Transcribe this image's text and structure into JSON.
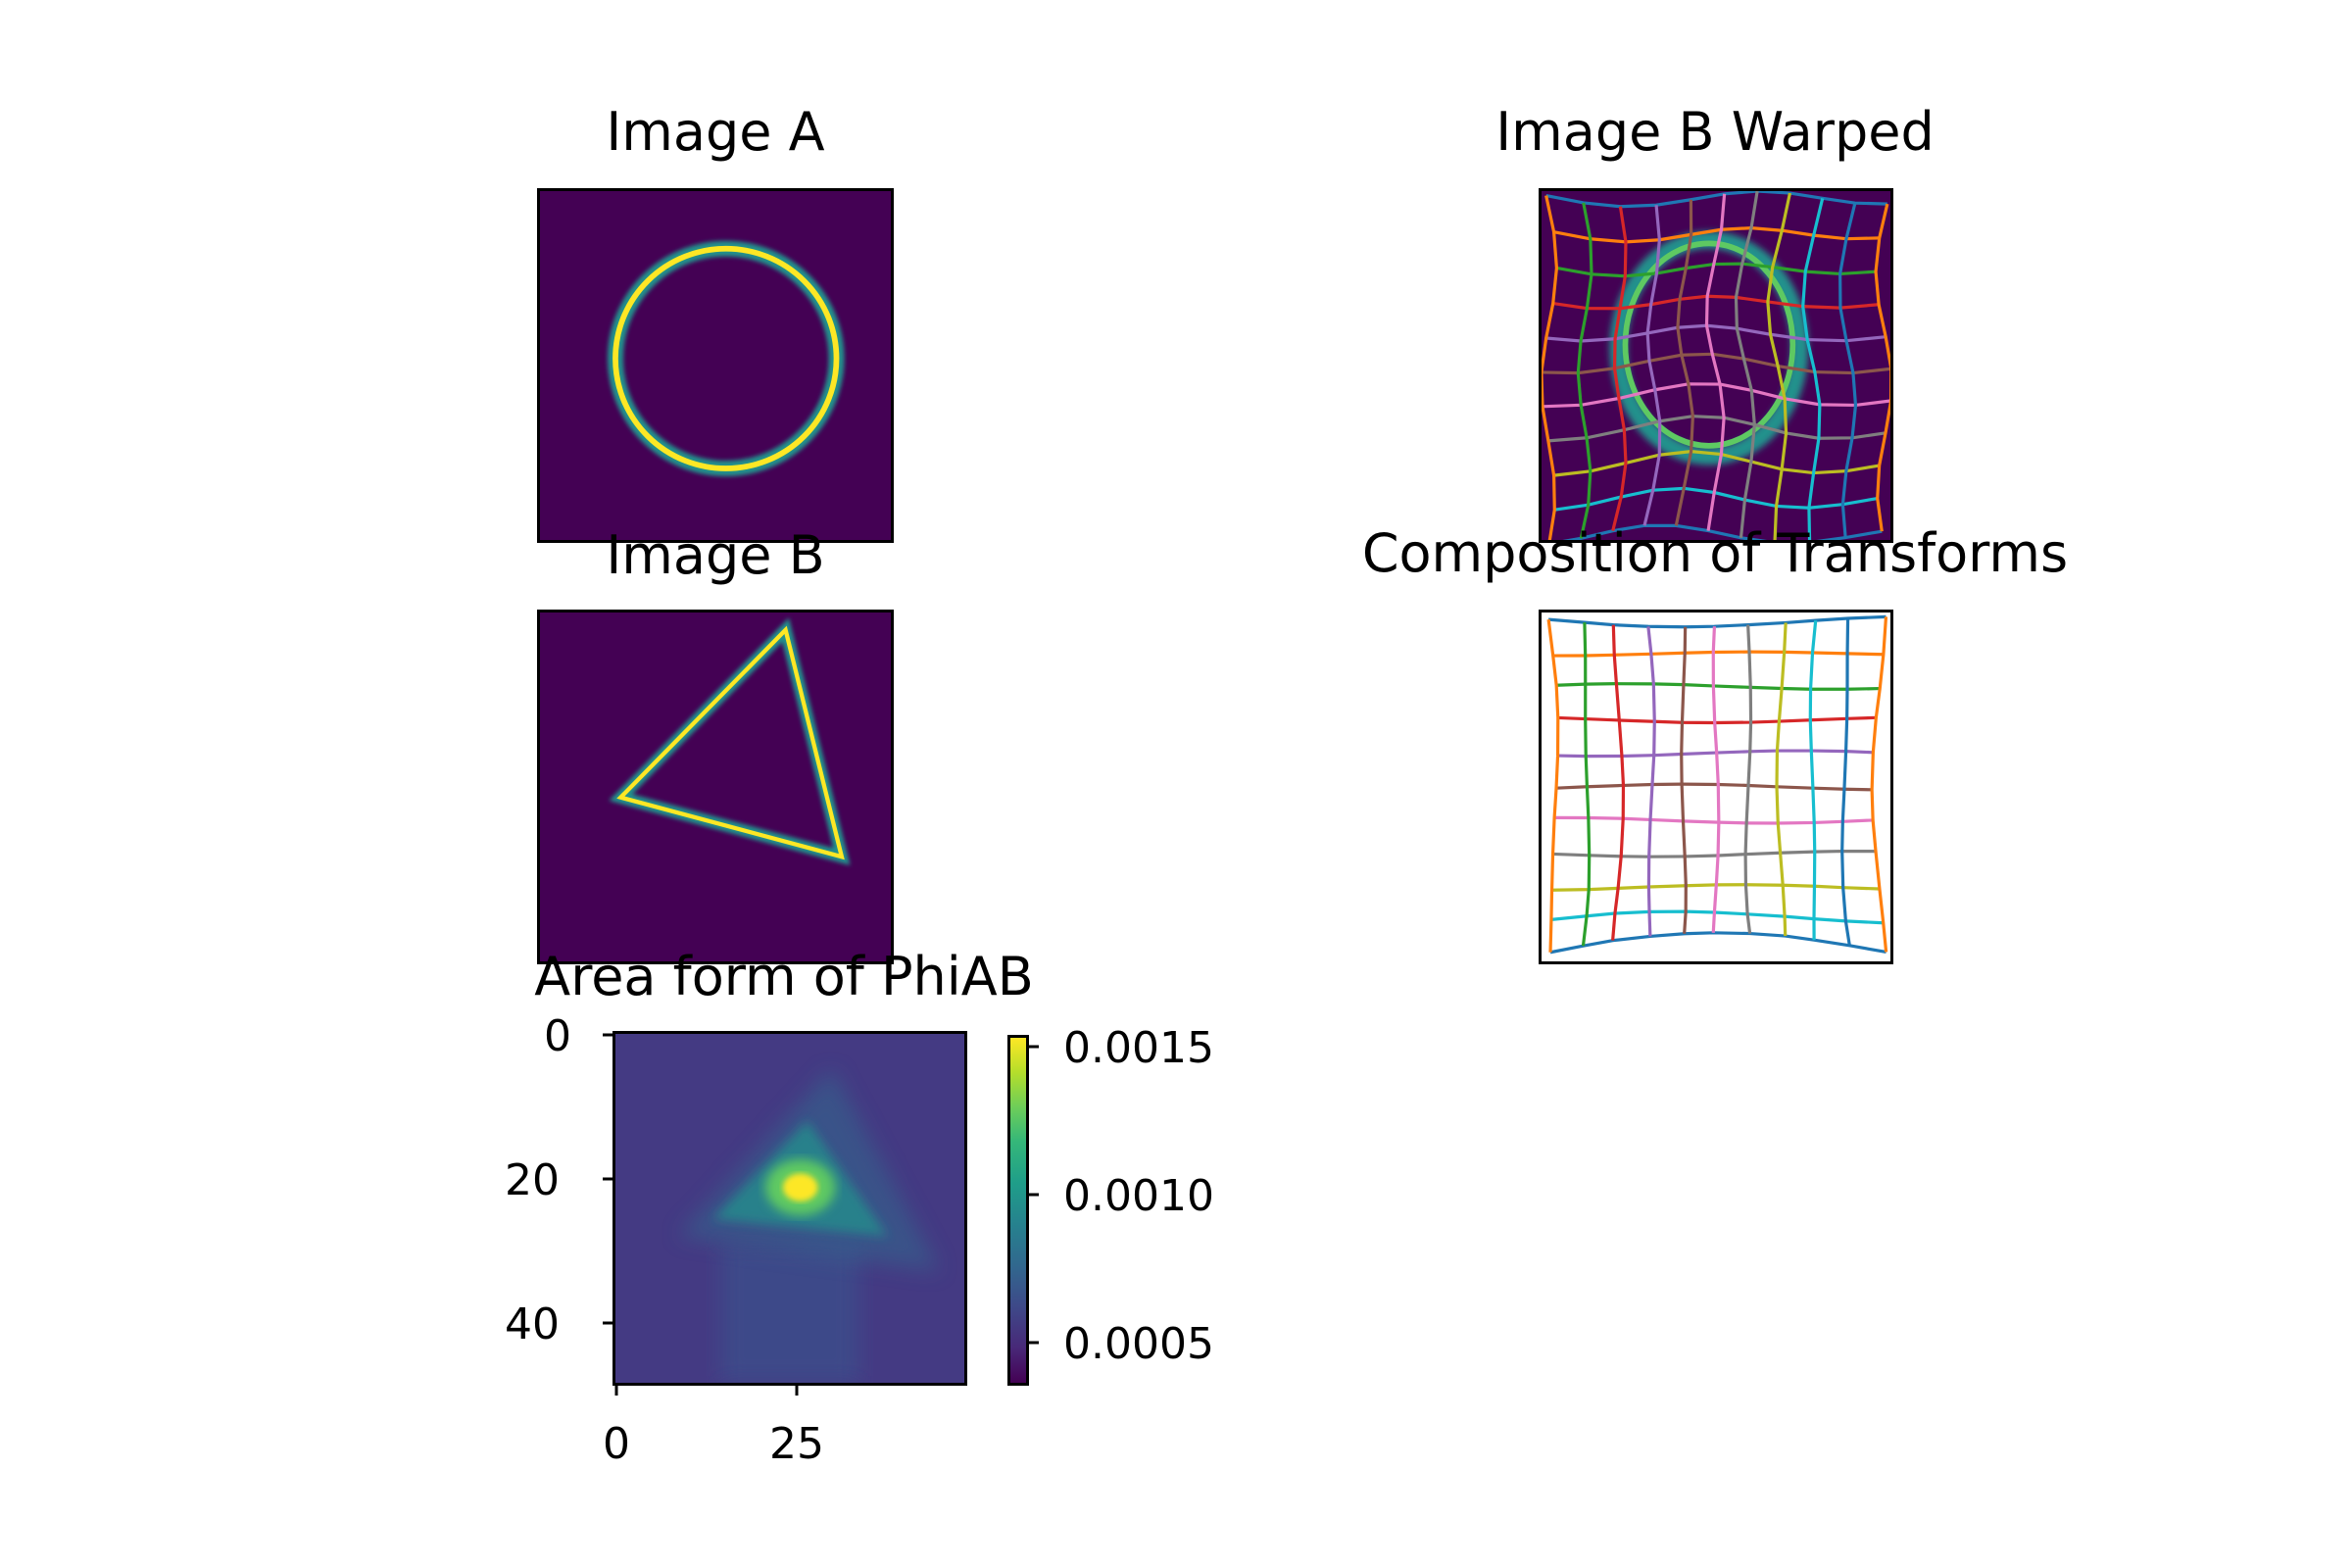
{
  "chart_data": [
    {
      "type": "heatmap",
      "title": "Image A",
      "shape": "circle",
      "colormap": "viridis",
      "axes_visible": false
    },
    {
      "type": "heatmap",
      "title": "Image B",
      "shape": "triangle",
      "colormap": "viridis",
      "axes_visible": false
    },
    {
      "type": "heatmap",
      "title": "Area form of PhiAB",
      "colormap": "viridis",
      "x_ticks": [
        "0",
        "25"
      ],
      "y_ticks": [
        "0",
        "20",
        "40"
      ],
      "xlim": [
        0,
        48
      ],
      "ylim": [
        48,
        0
      ],
      "colorbar": {
        "ticks": [
          "0.0005",
          "0.0010",
          "0.0015"
        ],
        "tick_values": [
          0.0005,
          0.001,
          0.0015
        ],
        "range": [
          0.00035,
          0.00158
        ]
      },
      "peak": {
        "x": 25,
        "y": 21,
        "value": 0.00155
      }
    },
    {
      "type": "heatmap",
      "title": "Image B Warped",
      "colormap": "viridis",
      "overlay": "deformation grid",
      "axes_visible": false
    },
    {
      "type": "line",
      "title": "Composition of Transforms",
      "overlay": "deformation grid",
      "grid_lines": 11,
      "axes_visible": false
    }
  ],
  "colors": {
    "viridis_dark": "#440154",
    "viridis_yellow": "#fde725",
    "viridis_green": "#35b779",
    "grid_palette": [
      "#1f77b4",
      "#ff7f0e",
      "#2ca02c",
      "#d62728",
      "#9467bd",
      "#8c564b",
      "#e377c2",
      "#7f7f7f",
      "#bcbd22",
      "#17becf"
    ]
  }
}
